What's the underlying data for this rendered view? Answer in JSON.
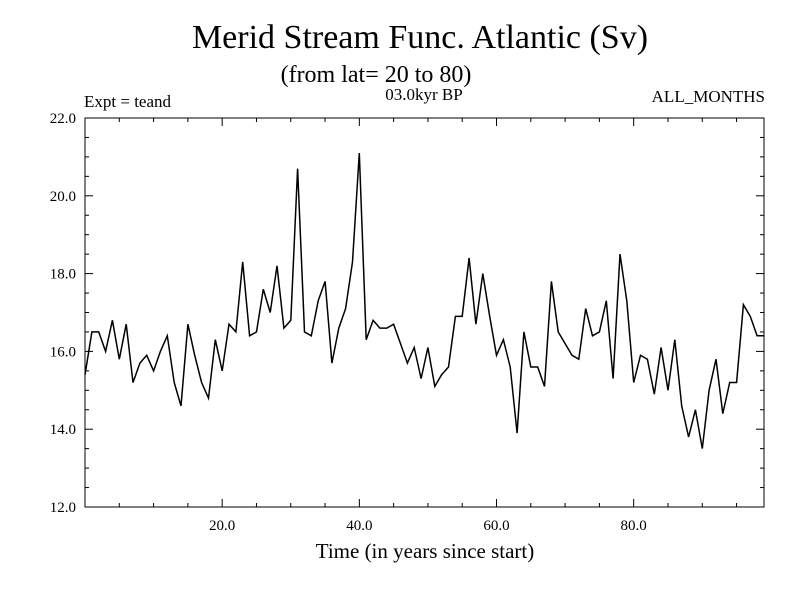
{
  "chart_data": {
    "type": "line",
    "title": "Merid Stream Func. Atlantic (Sv)",
    "subtitle": "(from lat= 20 to 80)",
    "label_left": "Expt = teand",
    "label_center": "03.0kyr BP",
    "label_right": "ALL_MONTHS",
    "xlabel": "Time (in years since start)",
    "ylabel": "",
    "xlim": [
      0,
      99
    ],
    "ylim": [
      12,
      22
    ],
    "x_ticks": [
      20,
      40,
      60,
      80
    ],
    "x_tick_labels": [
      "20.0",
      "40.0",
      "60.0",
      "80.0"
    ],
    "y_ticks": [
      12,
      14,
      16,
      18,
      20,
      22
    ],
    "y_tick_labels": [
      "12.0",
      "14.0",
      "16.0",
      "18.0",
      "20.0",
      "22.0"
    ],
    "grid": false,
    "series": [
      {
        "name": "Merid Stream Func.",
        "color": "#000000",
        "x": [
          0,
          1,
          2,
          3,
          4,
          5,
          6,
          7,
          8,
          9,
          10,
          11,
          12,
          13,
          14,
          15,
          16,
          17,
          18,
          19,
          20,
          21,
          22,
          23,
          24,
          25,
          26,
          27,
          28,
          29,
          30,
          31,
          32,
          33,
          34,
          35,
          36,
          37,
          38,
          39,
          40,
          41,
          42,
          43,
          44,
          45,
          46,
          47,
          48,
          49,
          50,
          51,
          52,
          53,
          54,
          55,
          56,
          57,
          58,
          59,
          60,
          61,
          62,
          63,
          64,
          65,
          66,
          67,
          68,
          69,
          70,
          71,
          72,
          73,
          74,
          75,
          76,
          77,
          78,
          79,
          80,
          81,
          82,
          83,
          84,
          85,
          86,
          87,
          88,
          89,
          90,
          91,
          92,
          93,
          94,
          95,
          96,
          97,
          98,
          99
        ],
        "values": [
          15.4,
          16.5,
          16.5,
          16.0,
          16.8,
          15.8,
          16.7,
          15.2,
          15.7,
          15.9,
          15.5,
          16.0,
          16.4,
          15.2,
          14.6,
          16.7,
          15.9,
          15.2,
          14.8,
          16.3,
          15.5,
          16.7,
          16.5,
          18.3,
          16.4,
          16.5,
          17.6,
          17.0,
          18.2,
          16.6,
          16.8,
          20.7,
          16.5,
          16.4,
          17.3,
          17.8,
          15.7,
          16.6,
          17.1,
          18.3,
          21.1,
          16.3,
          16.8,
          16.6,
          16.6,
          16.7,
          16.2,
          15.7,
          16.1,
          15.3,
          16.1,
          15.1,
          15.4,
          15.6,
          16.9,
          16.9,
          18.4,
          16.7,
          18.0,
          16.9,
          15.9,
          16.3,
          15.6,
          13.9,
          16.5,
          15.6,
          15.6,
          15.1,
          17.8,
          16.5,
          16.2,
          15.9,
          15.8,
          17.1,
          16.4,
          16.5,
          17.3,
          15.3,
          18.5,
          17.3,
          15.2,
          15.9,
          15.8,
          14.9,
          16.1,
          15.0,
          16.3,
          14.6,
          13.8,
          14.5,
          13.5,
          15.0,
          15.8,
          14.4,
          15.2,
          15.2,
          17.2,
          16.9,
          16.4,
          16.4
        ]
      }
    ]
  }
}
